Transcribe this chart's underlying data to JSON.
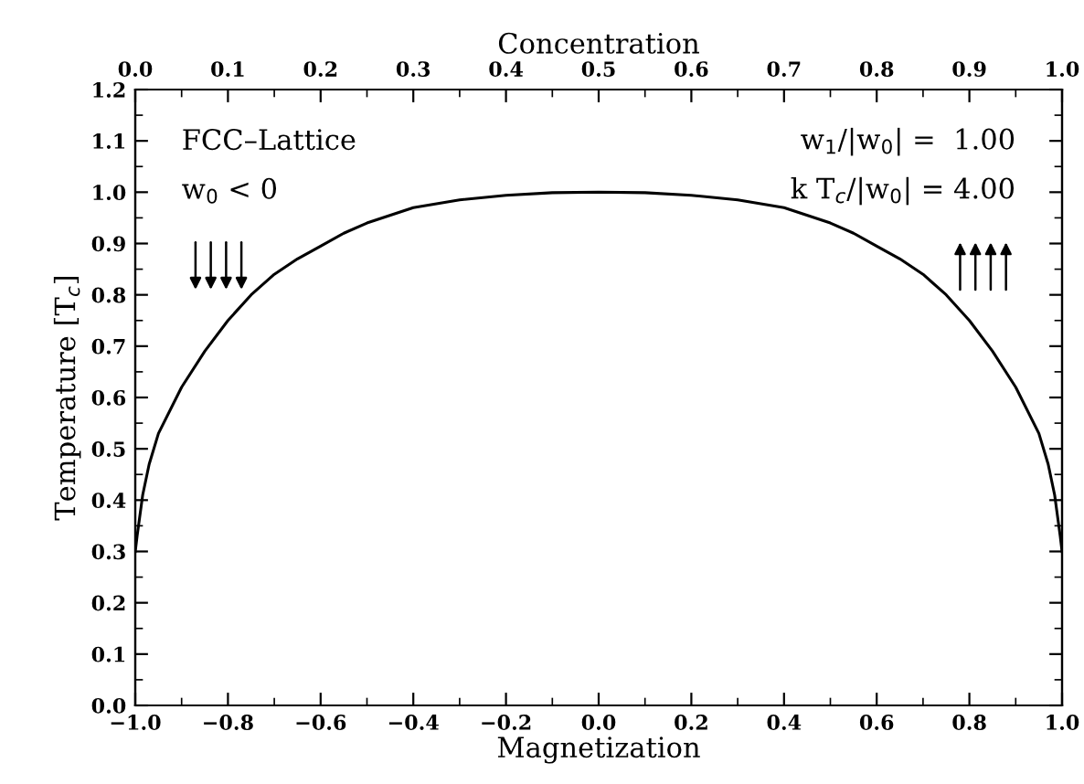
{
  "chart_data": {
    "type": "line",
    "xlabel": "Magnetization",
    "ylabel": "Temperature [T$_{c}$]",
    "x2label": "Concentration",
    "x": [
      -1.0,
      -0.996,
      -0.984,
      -0.97,
      -0.95,
      -0.9,
      -0.85,
      -0.8,
      -0.75,
      -0.7,
      -0.65,
      -0.6,
      -0.55,
      -0.5,
      -0.4,
      -0.3,
      -0.2,
      -0.1,
      0.0,
      0.1,
      0.2,
      0.3,
      0.4,
      0.5,
      0.55,
      0.6,
      0.65,
      0.7,
      0.75,
      0.8,
      0.85,
      0.9,
      0.95,
      0.97,
      0.984,
      0.996,
      1.0
    ],
    "series": [
      {
        "color": "#000000",
        "values": [
          0.3,
          0.33,
          0.41,
          0.47,
          0.53,
          0.62,
          0.69,
          0.75,
          0.8,
          0.84,
          0.87,
          0.895,
          0.92,
          0.94,
          0.97,
          0.985,
          0.994,
          0.999,
          1.0,
          0.999,
          0.994,
          0.985,
          0.97,
          0.94,
          0.92,
          0.895,
          0.87,
          0.84,
          0.8,
          0.75,
          0.69,
          0.62,
          0.53,
          0.47,
          0.41,
          0.33,
          0.3
        ]
      }
    ],
    "xlim": [
      -1.0,
      1.0
    ],
    "ylim": [
      0.0,
      1.2
    ],
    "x2lim": [
      0.0,
      1.0
    ],
    "xticks": [
      {
        "value": -1.0,
        "label": "−1.0"
      },
      {
        "value": -0.8,
        "label": "−0.8"
      },
      {
        "value": -0.6,
        "label": "−0.6"
      },
      {
        "value": -0.4,
        "label": "−0.4"
      },
      {
        "value": -0.2,
        "label": "−0.2"
      },
      {
        "value": 0.0,
        "label": "0.0"
      },
      {
        "value": 0.2,
        "label": "0.2"
      },
      {
        "value": 0.4,
        "label": "0.4"
      },
      {
        "value": 0.6,
        "label": "0.6"
      },
      {
        "value": 0.8,
        "label": "0.8"
      },
      {
        "value": 1.0,
        "label": "1.0"
      }
    ],
    "yticks": [
      {
        "value": 0.0,
        "label": "0.0"
      },
      {
        "value": 0.1,
        "label": "0.1"
      },
      {
        "value": 0.2,
        "label": "0.2"
      },
      {
        "value": 0.3,
        "label": "0.3"
      },
      {
        "value": 0.4,
        "label": "0.4"
      },
      {
        "value": 0.5,
        "label": "0.5"
      },
      {
        "value": 0.6,
        "label": "0.6"
      },
      {
        "value": 0.7,
        "label": "0.7"
      },
      {
        "value": 0.8,
        "label": "0.8"
      },
      {
        "value": 0.9,
        "label": "0.9"
      },
      {
        "value": 1.0,
        "label": "1.0"
      },
      {
        "value": 1.1,
        "label": "1.1"
      },
      {
        "value": 1.2,
        "label": "1.2"
      }
    ],
    "x2ticks": [
      {
        "value": 0.0,
        "label": "0.0"
      },
      {
        "value": 0.1,
        "label": "0.1"
      },
      {
        "value": 0.2,
        "label": "0.2"
      },
      {
        "value": 0.3,
        "label": "0.3"
      },
      {
        "value": 0.4,
        "label": "0.4"
      },
      {
        "value": 0.5,
        "label": "0.5"
      },
      {
        "value": 0.6,
        "label": "0.6"
      },
      {
        "value": 0.7,
        "label": "0.7"
      },
      {
        "value": 0.8,
        "label": "0.8"
      },
      {
        "value": 0.9,
        "label": "0.9"
      },
      {
        "value": 1.0,
        "label": "1.0"
      }
    ],
    "annotations": [
      "FCC–Lattice",
      "w$_{0}$ < 0",
      "w$_{1}$/|w$_{0}$| =  1.00",
      "k T$_{c}$/|w$_{0}$| = 4.00"
    ],
    "grid": false,
    "legend": false,
    "marker": "none",
    "line_style": "solid"
  }
}
